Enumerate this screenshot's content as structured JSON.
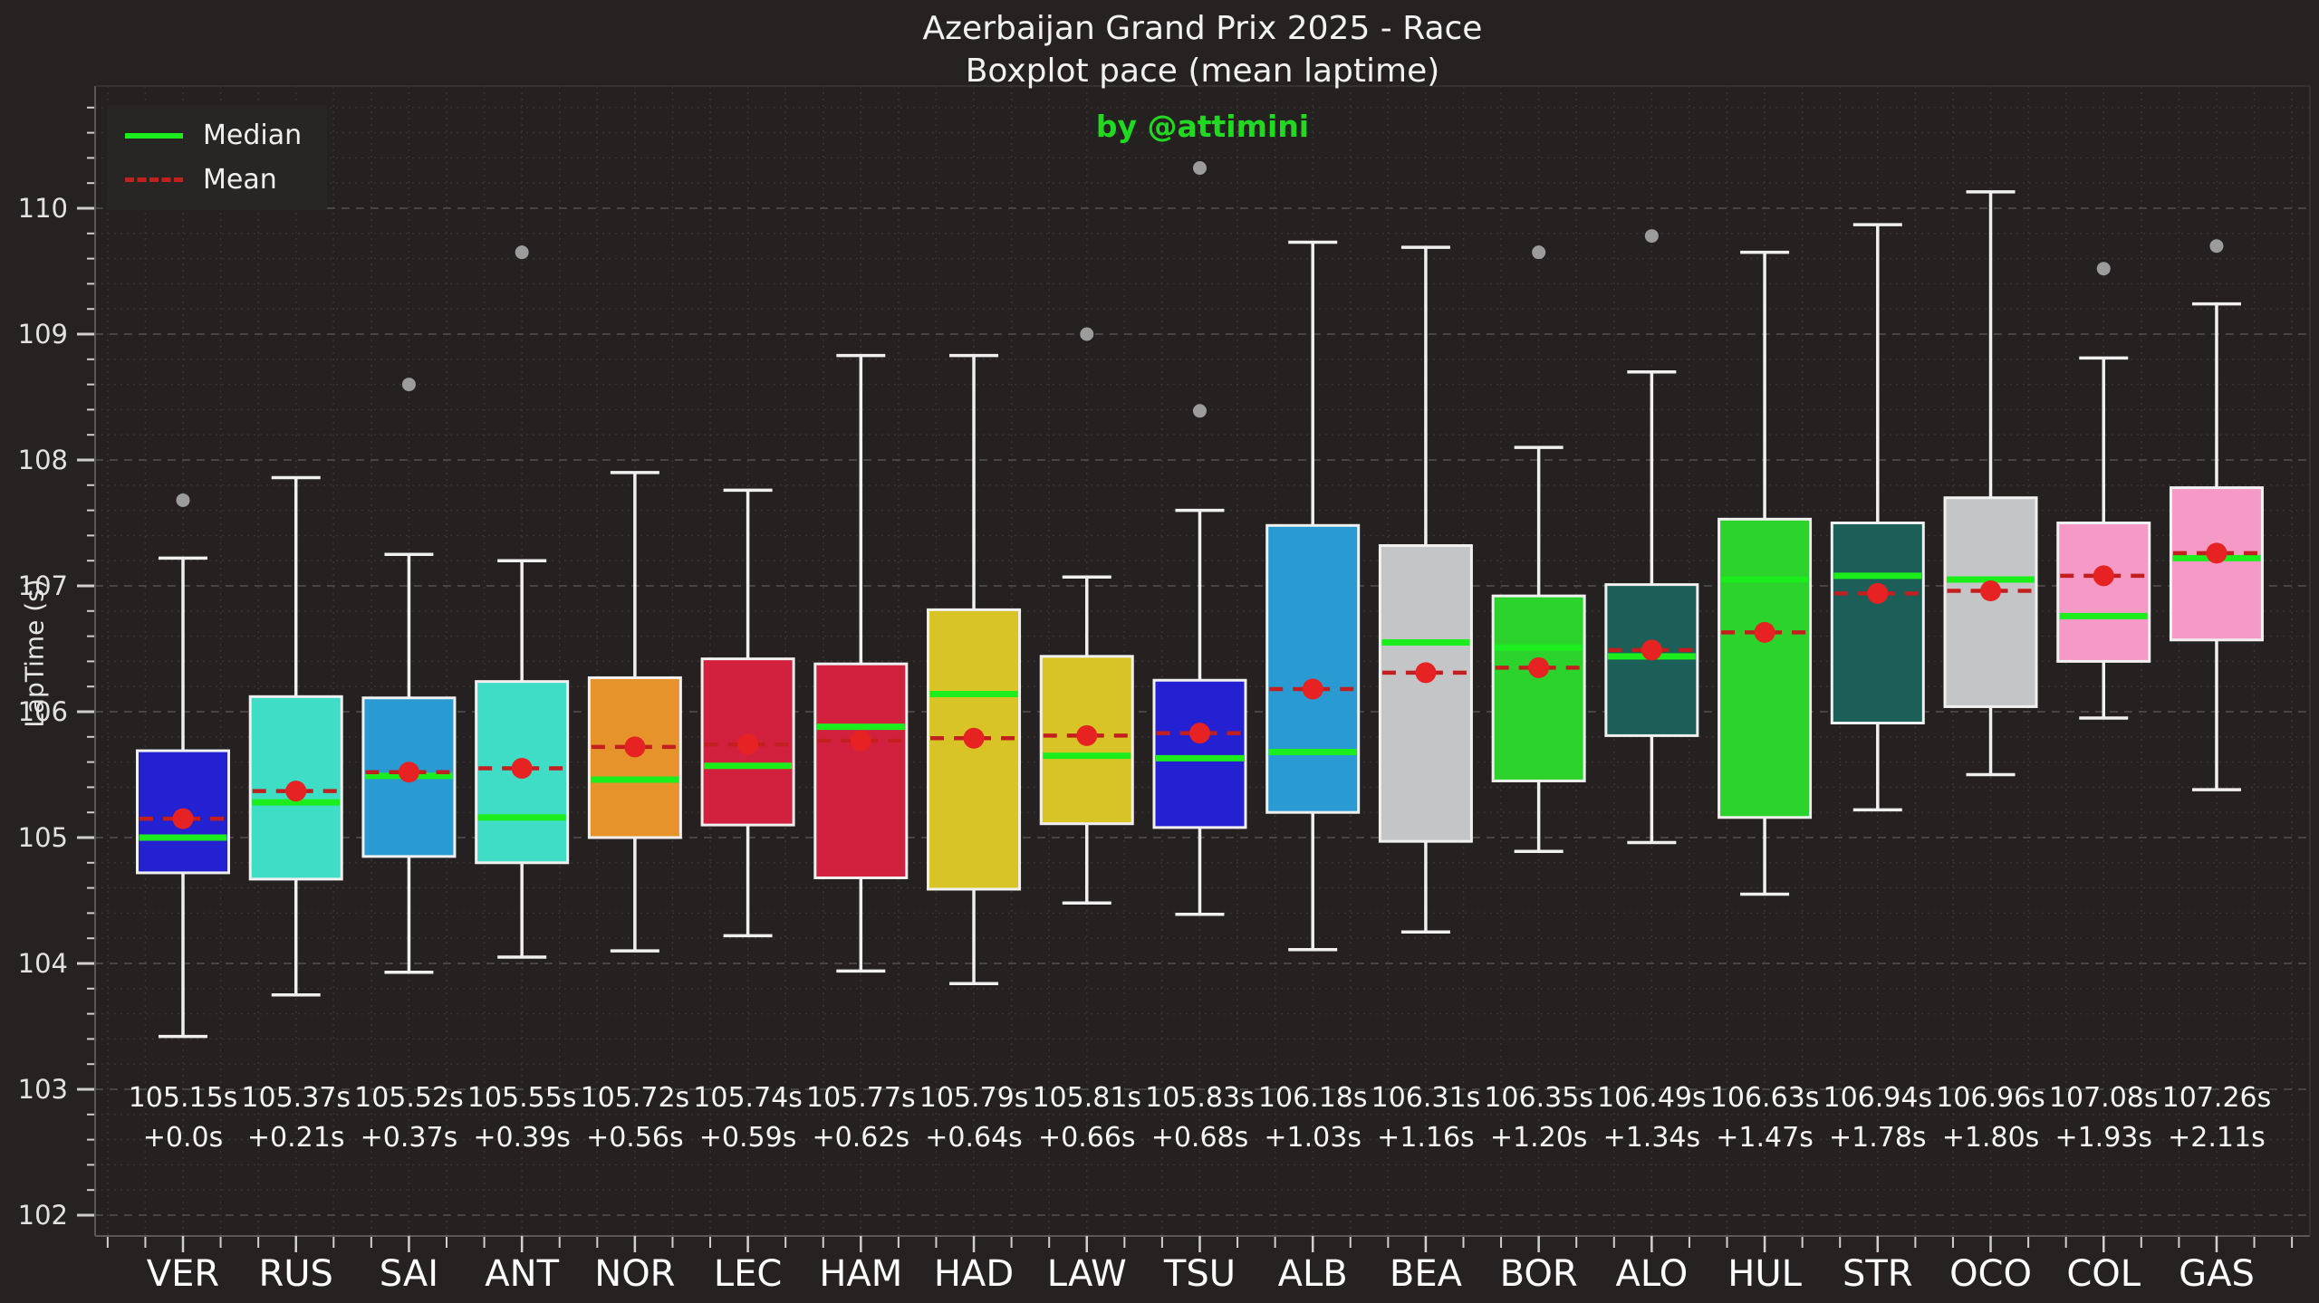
{
  "chart_data": {
    "type": "boxplot",
    "title_line1": "Azerbaijan Grand Prix 2025 - Race",
    "title_line2": "Boxplot pace (mean laptime)",
    "subtitle": "by @attimini",
    "ylabel": "LapTime (s)",
    "ylim": [
      101.8,
      111.0
    ],
    "yticks": [
      102,
      103,
      104,
      105,
      106,
      107,
      108,
      109,
      110
    ],
    "y_minor_step": 0.2,
    "grid": true,
    "legend": [
      "Median",
      "Mean"
    ],
    "legend_position": "upper-left",
    "colors": {
      "median_line": "#1ced1c",
      "mean_marker": "#e62222",
      "mean_dash": "#c41f1f",
      "box_edge": "#f0f0f0",
      "whisker": "#f0f0f0",
      "outlier": "#9c9c9c",
      "subtitle_green": "#21d921",
      "background": "#252221",
      "plot_background": "#242120",
      "grid_major": "#4d4a47",
      "grid_minor": "#383533"
    },
    "drivers": [
      {
        "code": "VER",
        "color": "#2421d2",
        "mean_label": "105.15s",
        "delta_label": "+0.0s",
        "stats": {
          "low": 103.42,
          "q1": 104.72,
          "median": 105.0,
          "mean": 105.15,
          "q3": 105.69,
          "high": 107.22
        },
        "outliers": [
          107.68
        ]
      },
      {
        "code": "RUS",
        "color": "#3fdcc6",
        "mean_label": "105.37s",
        "delta_label": "+0.21s",
        "stats": {
          "low": 103.75,
          "q1": 104.67,
          "median": 105.28,
          "mean": 105.37,
          "q3": 106.12,
          "high": 107.86
        },
        "outliers": []
      },
      {
        "code": "SAI",
        "color": "#2a9bd2",
        "mean_label": "105.52s",
        "delta_label": "+0.37s",
        "stats": {
          "low": 103.93,
          "q1": 104.85,
          "median": 105.49,
          "mean": 105.52,
          "q3": 106.11,
          "high": 107.25
        },
        "outliers": [
          108.6
        ]
      },
      {
        "code": "ANT",
        "color": "#3fdcc6",
        "mean_label": "105.55s",
        "delta_label": "+0.39s",
        "stats": {
          "low": 104.05,
          "q1": 104.8,
          "median": 105.16,
          "mean": 105.55,
          "q3": 106.24,
          "high": 107.2
        },
        "outliers": [
          109.65
        ]
      },
      {
        "code": "NOR",
        "color": "#e6932b",
        "mean_label": "105.72s",
        "delta_label": "+0.56s",
        "stats": {
          "low": 104.1,
          "q1": 105.0,
          "median": 105.46,
          "mean": 105.72,
          "q3": 106.27,
          "high": 107.9
        },
        "outliers": []
      },
      {
        "code": "LEC",
        "color": "#d2203f",
        "mean_label": "105.74s",
        "delta_label": "+0.59s",
        "stats": {
          "low": 104.22,
          "q1": 105.1,
          "median": 105.57,
          "mean": 105.74,
          "q3": 106.42,
          "high": 107.76
        },
        "outliers": []
      },
      {
        "code": "HAM",
        "color": "#d2203f",
        "mean_label": "105.77s",
        "delta_label": "+0.62s",
        "stats": {
          "low": 103.94,
          "q1": 104.68,
          "median": 105.88,
          "mean": 105.77,
          "q3": 106.38,
          "high": 108.83
        },
        "outliers": []
      },
      {
        "code": "HAD",
        "color": "#d9c427",
        "mean_label": "105.79s",
        "delta_label": "+0.64s",
        "stats": {
          "low": 103.84,
          "q1": 104.59,
          "median": 106.14,
          "mean": 105.79,
          "q3": 106.81,
          "high": 108.83
        },
        "outliers": []
      },
      {
        "code": "LAW",
        "color": "#d9c427",
        "mean_label": "105.81s",
        "delta_label": "+0.66s",
        "stats": {
          "low": 104.48,
          "q1": 105.11,
          "median": 105.65,
          "mean": 105.81,
          "q3": 106.44,
          "high": 107.07
        },
        "outliers": [
          109.0
        ]
      },
      {
        "code": "TSU",
        "color": "#2421d2",
        "mean_label": "105.83s",
        "delta_label": "+0.68s",
        "stats": {
          "low": 104.39,
          "q1": 105.08,
          "median": 105.63,
          "mean": 105.83,
          "q3": 106.25,
          "high": 107.6
        },
        "outliers": [
          108.39,
          110.32
        ]
      },
      {
        "code": "ALB",
        "color": "#2a9bd2",
        "mean_label": "106.18s",
        "delta_label": "+1.03s",
        "stats": {
          "low": 104.11,
          "q1": 105.2,
          "median": 105.68,
          "mean": 106.18,
          "q3": 107.48,
          "high": 109.73
        },
        "outliers": []
      },
      {
        "code": "BEA",
        "color": "#c3c5c7",
        "mean_label": "106.31s",
        "delta_label": "+1.16s",
        "stats": {
          "low": 104.25,
          "q1": 104.97,
          "median": 106.55,
          "mean": 106.31,
          "q3": 107.32,
          "high": 109.69
        },
        "outliers": []
      },
      {
        "code": "BOR",
        "color": "#2dd32d",
        "mean_label": "106.35s",
        "delta_label": "+1.20s",
        "stats": {
          "low": 104.89,
          "q1": 105.45,
          "median": 106.51,
          "mean": 106.35,
          "q3": 106.92,
          "high": 108.1
        },
        "outliers": [
          109.65
        ]
      },
      {
        "code": "ALO",
        "color": "#1b5f58",
        "mean_label": "106.49s",
        "delta_label": "+1.34s",
        "stats": {
          "low": 104.96,
          "q1": 105.81,
          "median": 106.44,
          "mean": 106.49,
          "q3": 107.01,
          "high": 108.7
        },
        "outliers": [
          109.78
        ]
      },
      {
        "code": "HUL",
        "color": "#2dd32d",
        "mean_label": "106.63s",
        "delta_label": "+1.47s",
        "stats": {
          "low": 104.55,
          "q1": 105.16,
          "median": 107.05,
          "mean": 106.63,
          "q3": 107.53,
          "high": 109.65
        },
        "outliers": []
      },
      {
        "code": "STR",
        "color": "#1b5f58",
        "mean_label": "106.94s",
        "delta_label": "+1.78s",
        "stats": {
          "low": 105.22,
          "q1": 105.91,
          "median": 107.08,
          "mean": 106.94,
          "q3": 107.5,
          "high": 109.87
        },
        "outliers": []
      },
      {
        "code": "OCO",
        "color": "#c3c5c7",
        "mean_label": "106.96s",
        "delta_label": "+1.80s",
        "stats": {
          "low": 105.5,
          "q1": 106.04,
          "median": 107.05,
          "mean": 106.96,
          "q3": 107.7,
          "high": 110.13
        },
        "outliers": []
      },
      {
        "code": "COL",
        "color": "#f59ac6",
        "mean_label": "107.08s",
        "delta_label": "+1.93s",
        "stats": {
          "low": 105.95,
          "q1": 106.4,
          "median": 106.76,
          "mean": 107.08,
          "q3": 107.5,
          "high": 108.81
        },
        "outliers": [
          109.52
        ]
      },
      {
        "code": "GAS",
        "color": "#f59ac6",
        "mean_label": "107.26s",
        "delta_label": "+2.11s",
        "stats": {
          "low": 105.38,
          "q1": 106.57,
          "median": 107.22,
          "mean": 107.26,
          "q3": 107.78,
          "high": 109.24
        },
        "outliers": [
          109.7
        ]
      }
    ]
  }
}
